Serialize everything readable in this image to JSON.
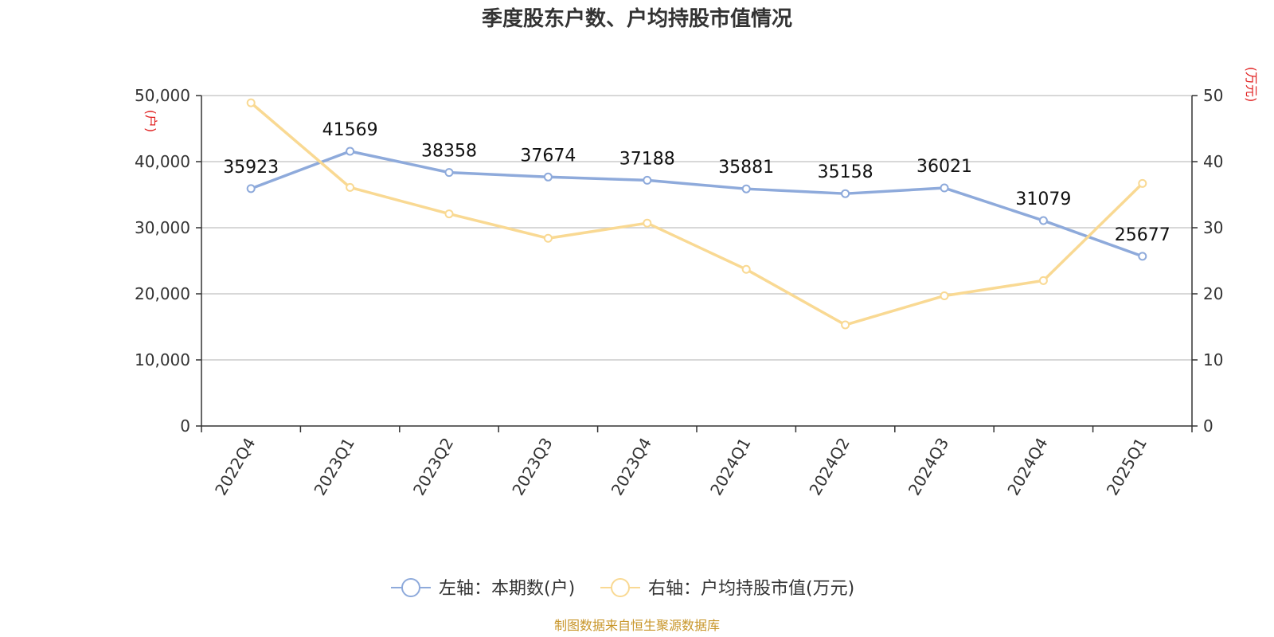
{
  "title": "季度股东户数、户均持股市值情况",
  "source": "制图数据来自恒生聚源数据库",
  "chart_data": {
    "type": "line",
    "title": "季度股东户数、户均持股市值情况",
    "categories": [
      "2022Q4",
      "2023Q1",
      "2023Q2",
      "2023Q3",
      "2023Q4",
      "2024Q1",
      "2024Q2",
      "2024Q3",
      "2024Q4",
      "2025Q1"
    ],
    "left_axis": {
      "unit": "(户)",
      "ylim": [
        0,
        50000
      ],
      "ticks": [
        0,
        10000,
        20000,
        30000,
        40000,
        50000
      ],
      "tick_labels": [
        "0",
        "10,000",
        "20,000",
        "30,000",
        "40,000",
        "50,000"
      ]
    },
    "right_axis": {
      "unit": "(万元)",
      "ylim": [
        0,
        50
      ],
      "ticks": [
        0,
        10,
        20,
        30,
        40,
        50
      ],
      "tick_labels": [
        "0",
        "10",
        "20",
        "30",
        "40",
        "50"
      ]
    },
    "grid": true,
    "legend_position": "bottom-center",
    "series": [
      {
        "name": "左轴：本期数(户)",
        "axis": "left",
        "color": "#8eaadb",
        "values": [
          35923,
          41569,
          38358,
          37674,
          37188,
          35881,
          35158,
          36021,
          31079,
          25677
        ],
        "labels": [
          "35923",
          "41569",
          "38358",
          "37674",
          "37188",
          "35881",
          "35158",
          "36021",
          "31079",
          "25677"
        ]
      },
      {
        "name": "右轴：户均持股市值(万元)",
        "axis": "right",
        "color": "#f9d993",
        "values": [
          48.9,
          36.1,
          32.1,
          28.4,
          30.7,
          23.7,
          15.3,
          19.7,
          22.0,
          36.7
        ]
      }
    ]
  }
}
